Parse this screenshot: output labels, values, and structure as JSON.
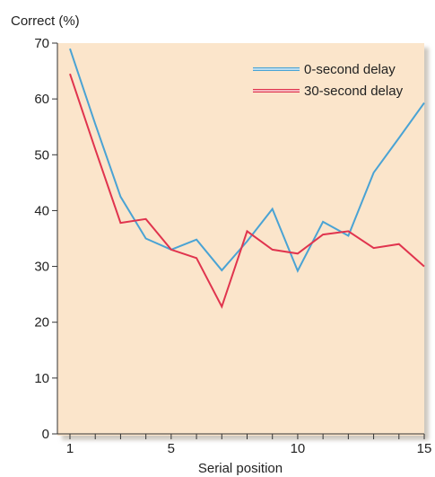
{
  "chart_data": {
    "type": "line",
    "ylabel": "Correct (%)",
    "xlabel": "Serial position",
    "xlim": [
      1,
      15
    ],
    "ylim": [
      0,
      70
    ],
    "x_ticks_labeled": [
      1,
      5,
      10,
      15
    ],
    "x_tick_labels": [
      "1",
      "5",
      "10",
      "15"
    ],
    "y_ticks": [
      0,
      10,
      20,
      30,
      40,
      50,
      60,
      70
    ],
    "y_tick_labels": [
      "0",
      "10",
      "20",
      "30",
      "40",
      "50",
      "60",
      "70"
    ],
    "x": [
      1,
      2,
      3,
      4,
      5,
      6,
      7,
      8,
      9,
      10,
      11,
      12,
      13,
      14,
      15
    ],
    "background_color": "#fbe5cb",
    "legend_position": "top-right",
    "series": [
      {
        "name": "0-second delay",
        "color": "#4aa3d4",
        "values": [
          69,
          55.5,
          42.5,
          35,
          33,
          34.8,
          29.3,
          34.5,
          40.3,
          29.2,
          38,
          35.5,
          46.8,
          53,
          59.3
        ]
      },
      {
        "name": "30-second delay",
        "color": "#e0344e",
        "values": [
          64.5,
          51,
          37.8,
          38.5,
          33,
          31.5,
          22.8,
          36.3,
          33,
          32.3,
          35.7,
          36.3,
          33.3,
          34,
          30
        ]
      }
    ]
  }
}
